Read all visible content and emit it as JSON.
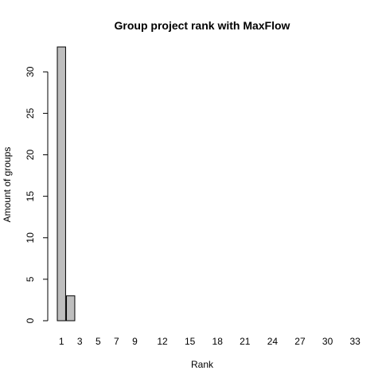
{
  "chart_data": {
    "type": "bar",
    "title": "Group project rank with MaxFlow",
    "xlabel": "Rank",
    "ylabel": "Amount of groups",
    "categories": [
      "1",
      "2",
      "3",
      "4",
      "5",
      "6",
      "7",
      "8",
      "9",
      "10",
      "11",
      "12",
      "13",
      "14",
      "15",
      "16",
      "17",
      "18",
      "19",
      "20",
      "21",
      "22",
      "23",
      "24",
      "25",
      "26",
      "27",
      "28",
      "29",
      "30",
      "31",
      "32",
      "33",
      "34"
    ],
    "values": [
      33,
      3,
      0,
      0,
      0,
      0,
      0,
      0,
      0,
      0,
      0,
      0,
      0,
      0,
      0,
      0,
      0,
      0,
      0,
      0,
      0,
      0,
      0,
      0,
      0,
      0,
      0,
      0,
      0,
      0,
      0,
      0,
      0,
      0
    ],
    "x_tick_labels": [
      "1",
      "3",
      "5",
      "7",
      "9",
      "12",
      "15",
      "18",
      "21",
      "24",
      "27",
      "30",
      "33"
    ],
    "y_ticks": [
      0,
      5,
      10,
      15,
      20,
      25,
      30
    ],
    "ylim": [
      0,
      33
    ],
    "grid": false,
    "bar_color": "#bebebe"
  }
}
